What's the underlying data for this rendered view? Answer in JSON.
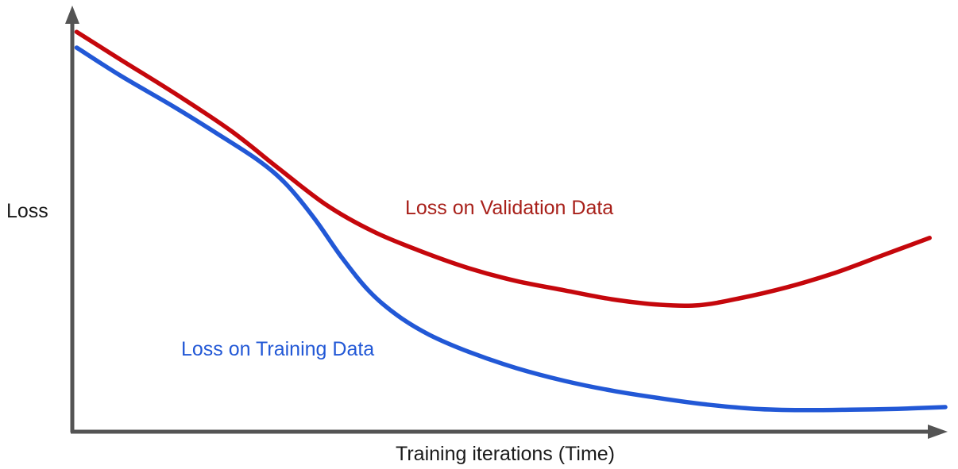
{
  "labels": {
    "y_axis": "Loss",
    "x_axis": "Training iterations (Time)"
  },
  "colors": {
    "axis": "#545454",
    "validation_curve": "#c5070c",
    "validation_label": "#a8201a",
    "training_curve": "#2258d6",
    "training_label": "#2258d6",
    "background": "#ffffff",
    "text": "#1a1a1a"
  },
  "chart_data": {
    "type": "line",
    "title": "",
    "xlabel": "Training iterations (Time)",
    "ylabel": "Loss",
    "x_range": [
      0,
      100
    ],
    "y_range": [
      0,
      100
    ],
    "axes_unlabeled": true,
    "grid": false,
    "legend_position": "inline-annotations",
    "series": [
      {
        "name": "Loss on Validation Data",
        "color": "#c5070c",
        "points": [
          [
            0.5,
            94.7
          ],
          [
            5.5,
            88.2
          ],
          [
            11.8,
            80.1
          ],
          [
            18.2,
            71.3
          ],
          [
            23.6,
            62.5
          ],
          [
            29.1,
            53.8
          ],
          [
            34.5,
            47.5
          ],
          [
            40.0,
            42.8
          ],
          [
            45.5,
            38.8
          ],
          [
            50.9,
            35.8
          ],
          [
            56.4,
            33.6
          ],
          [
            61.8,
            31.5
          ],
          [
            67.3,
            30.2
          ],
          [
            71.8,
            30.1
          ],
          [
            76.4,
            31.7
          ],
          [
            81.8,
            34.3
          ],
          [
            87.3,
            37.7
          ],
          [
            92.7,
            41.8
          ],
          [
            98.2,
            46.0
          ]
        ]
      },
      {
        "name": "Loss on Training Data",
        "color": "#2258d6",
        "points": [
          [
            0.5,
            91.0
          ],
          [
            5.5,
            84.4
          ],
          [
            11.4,
            77.3
          ],
          [
            16.8,
            70.4
          ],
          [
            21.4,
            64.2
          ],
          [
            24.5,
            58.7
          ],
          [
            27.7,
            50.7
          ],
          [
            30.9,
            41.3
          ],
          [
            34.1,
            33.2
          ],
          [
            37.3,
            27.6
          ],
          [
            40.9,
            23.1
          ],
          [
            45.5,
            19.0
          ],
          [
            50.9,
            15.2
          ],
          [
            56.4,
            12.2
          ],
          [
            61.8,
            9.9
          ],
          [
            67.3,
            8.1
          ],
          [
            72.7,
            6.6
          ],
          [
            78.2,
            5.6
          ],
          [
            83.6,
            5.3
          ],
          [
            89.1,
            5.4
          ],
          [
            94.5,
            5.6
          ],
          [
            100.0,
            6.0
          ]
        ]
      }
    ],
    "annotations": [
      {
        "text": "Loss on Validation Data",
        "color": "#a8201a",
        "anchor": "above validation curve"
      },
      {
        "text": "Loss on Training Data",
        "color": "#2258d6",
        "anchor": "left of training curve knee"
      }
    ]
  }
}
